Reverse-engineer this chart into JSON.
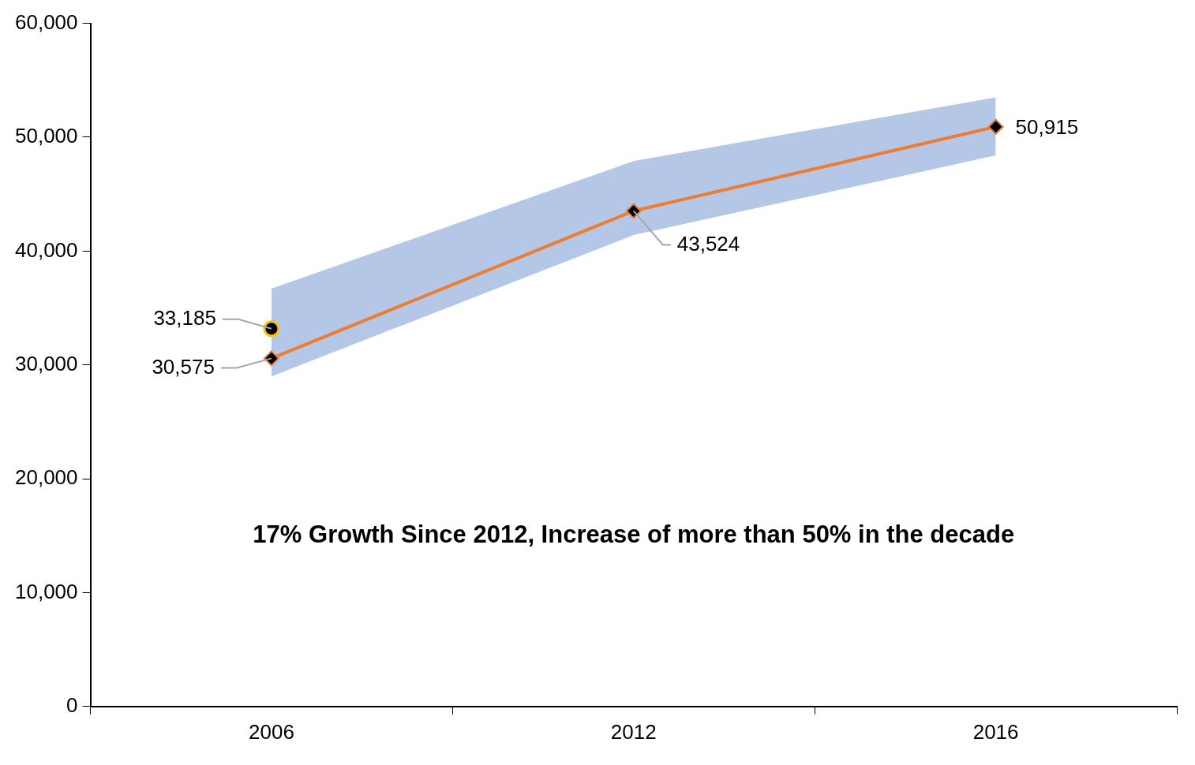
{
  "chart_data": {
    "type": "line",
    "categories": [
      "2006",
      "2012",
      "2016"
    ],
    "series": [
      {
        "type": "line",
        "color": "#ed7d31",
        "values": [
          30575,
          43524,
          50915
        ],
        "value_labels": [
          "30,575",
          "43,524",
          "50,915"
        ],
        "lower": [
          29000,
          41400,
          48400
        ],
        "upper": [
          36700,
          47900,
          53500
        ],
        "marker": "diamond"
      },
      {
        "type": "scatter",
        "color": "#000000",
        "values": [
          33185,
          null,
          null
        ],
        "value_labels": [
          "33,185",
          null,
          null
        ],
        "marker": "circle"
      }
    ],
    "ylim": [
      0,
      60000
    ],
    "yticks": [
      {
        "value": 0,
        "label": "0"
      },
      {
        "value": 10000,
        "label": "10,000"
      },
      {
        "value": 20000,
        "label": "20,000"
      },
      {
        "value": 30000,
        "label": "30,000"
      },
      {
        "value": 40000,
        "label": "40,000"
      },
      {
        "value": 50000,
        "label": "50,000"
      },
      {
        "value": 60000,
        "label": "60,000"
      }
    ],
    "grid": false,
    "legend": false,
    "line_style": "solid",
    "annotations": [
      "17% Growth Since 2012, Increase of more than 50% in the decade"
    ]
  }
}
